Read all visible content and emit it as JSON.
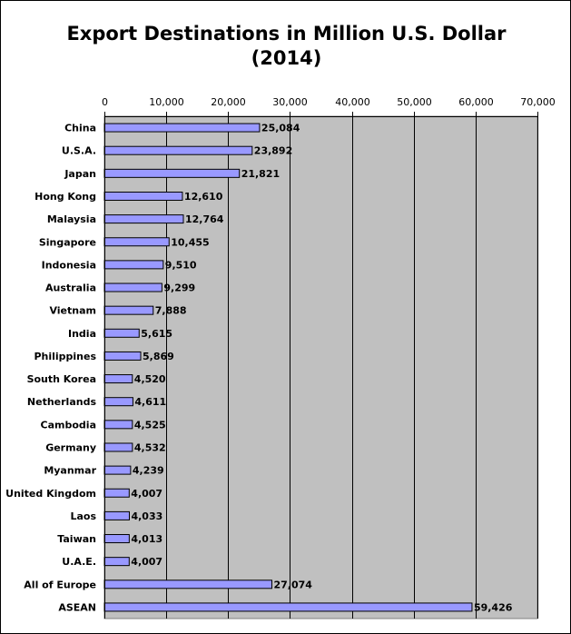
{
  "chart_data": {
    "type": "bar",
    "orientation": "horizontal",
    "title": "Export Destinations in Million U.S. Dollar",
    "subtitle": "(2014)",
    "xlim": [
      0,
      70000
    ],
    "xticks": [
      "0",
      "10,000",
      "20,000",
      "30,000",
      "40,000",
      "50,000",
      "60,000",
      "70,000"
    ],
    "grid": true,
    "categories": [
      "China",
      "U.S.A.",
      "Japan",
      "Hong Kong",
      "Malaysia",
      "Singapore",
      "Indonesia",
      "Australia",
      "Vietnam",
      "India",
      "Philippines",
      "South Korea",
      "Netherlands",
      "Cambodia",
      "Germany",
      "Myanmar",
      "United Kingdom",
      "Laos",
      "Taiwan",
      "U.A.E.",
      "All of Europe",
      "ASEAN"
    ],
    "values": [
      25084,
      23892,
      21821,
      12610,
      12764,
      10455,
      9510,
      9299,
      7888,
      5615,
      5869,
      4520,
      4611,
      4525,
      4532,
      4239,
      4007,
      4033,
      4013,
      4007,
      27074,
      59426
    ],
    "value_labels": [
      "25,084",
      "23,892",
      "21,821",
      "12,610",
      "12,764",
      "10,455",
      "9,510",
      "9,299",
      "7,888",
      "5,615",
      "5,869",
      "4,520",
      "4,611",
      "4,525",
      "4,532",
      "4,239",
      "4,007",
      "4,033",
      "4,013",
      "4,007",
      "27,074",
      "59,426"
    ],
    "colors": {
      "bar_fill": "#9999ff",
      "bar_stroke": "#000000",
      "plot_bg": "#c0c0c0",
      "grid": "#000000"
    }
  }
}
